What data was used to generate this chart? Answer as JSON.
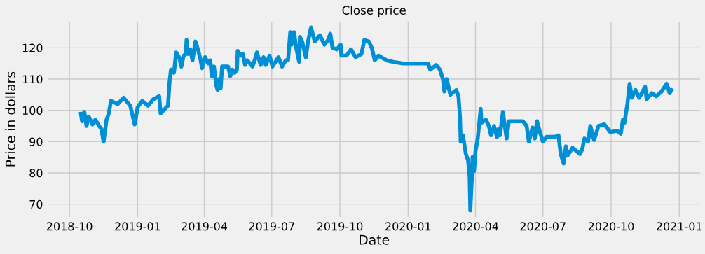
{
  "chart_data": {
    "type": "line",
    "title": "Close price",
    "xlabel": "Date",
    "ylabel": "Price in dollars",
    "x": [
      "2018-10-16",
      "2018-10-18",
      "2018-10-21",
      "2018-10-24",
      "2018-10-27",
      "2018-11-01",
      "2018-11-05",
      "2018-11-10",
      "2018-11-13",
      "2018-11-16",
      "2018-11-20",
      "2018-11-23",
      "2018-11-26",
      "2018-12-05",
      "2018-12-13",
      "2018-12-22",
      "2018-12-28",
      "2019-01-01",
      "2019-01-07",
      "2019-01-15",
      "2019-01-22",
      "2019-01-30",
      "2019-02-01",
      "2019-02-11",
      "2019-02-13",
      "2019-02-15",
      "2019-02-19",
      "2019-02-22",
      "2019-02-26",
      "2019-03-01",
      "2019-03-04",
      "2019-03-07",
      "2019-03-08",
      "2019-03-10",
      "2019-03-13",
      "2019-03-16",
      "2019-03-20",
      "2019-03-24",
      "2019-03-27",
      "2019-03-29",
      "2019-04-02",
      "2019-04-06",
      "2019-04-09",
      "2019-04-11",
      "2019-04-14",
      "2019-04-17",
      "2019-04-19",
      "2019-04-21",
      "2019-04-23",
      "2019-04-25",
      "2019-05-03",
      "2019-05-06",
      "2019-05-09",
      "2019-05-12",
      "2019-05-15",
      "2019-05-16",
      "2019-05-20",
      "2019-05-23",
      "2019-05-26",
      "2019-05-29",
      "2019-06-05",
      "2019-06-08",
      "2019-06-11",
      "2019-06-16",
      "2019-06-20",
      "2019-06-23",
      "2019-06-28",
      "2019-07-02",
      "2019-07-10",
      "2019-07-15",
      "2019-07-20",
      "2019-07-23",
      "2019-07-26",
      "2019-07-28",
      "2019-07-31",
      "2019-08-03",
      "2019-08-07",
      "2019-08-08",
      "2019-08-11",
      "2019-08-16",
      "2019-08-19",
      "2019-08-23",
      "2019-08-28",
      "2019-09-04",
      "2019-09-10",
      "2019-09-15",
      "2019-09-18",
      "2019-09-21",
      "2019-09-27",
      "2019-10-02",
      "2019-10-03",
      "2019-10-10",
      "2019-10-16",
      "2019-10-22",
      "2019-10-30",
      "2019-11-03",
      "2019-11-09",
      "2019-11-13",
      "2019-11-17",
      "2019-11-22",
      "2019-12-03",
      "2019-12-12",
      "2019-12-25",
      "2020-01-13",
      "2020-01-28",
      "2020-01-31",
      "2020-02-08",
      "2020-02-13",
      "2020-02-17",
      "2020-02-19",
      "2020-02-22",
      "2020-02-27",
      "2020-03-06",
      "2020-03-09",
      "2020-03-11",
      "2020-03-12",
      "2020-03-15",
      "2020-03-19",
      "2020-03-22",
      "2020-03-24",
      "2020-03-25",
      "2020-03-27",
      "2020-03-28",
      "2020-03-30",
      "2020-04-01",
      "2020-04-04",
      "2020-04-08",
      "2020-04-09",
      "2020-04-15",
      "2020-04-19",
      "2020-04-22",
      "2020-04-26",
      "2020-04-30",
      "2020-05-02",
      "2020-05-04",
      "2020-05-08",
      "2020-05-10",
      "2020-05-13",
      "2020-05-16",
      "2020-05-29",
      "2020-06-04",
      "2020-06-09",
      "2020-06-12",
      "2020-06-17",
      "2020-06-20",
      "2020-06-23",
      "2020-06-27",
      "2020-07-01",
      "2020-07-06",
      "2020-07-17",
      "2020-07-22",
      "2020-07-25",
      "2020-07-29",
      "2020-08-01",
      "2020-08-03",
      "2020-08-10",
      "2020-08-15",
      "2020-08-20",
      "2020-08-23",
      "2020-08-26",
      "2020-08-31",
      "2020-09-03",
      "2020-09-08",
      "2020-09-14",
      "2020-09-22",
      "2020-09-30",
      "2020-10-09",
      "2020-10-14",
      "2020-10-17",
      "2020-10-19",
      "2020-10-21",
      "2020-10-23",
      "2020-10-26",
      "2020-10-29",
      "2020-11-03",
      "2020-11-08",
      "2020-11-16",
      "2020-11-18",
      "2020-11-25",
      "2020-12-01",
      "2020-12-08",
      "2020-12-15",
      "2020-12-19",
      "2020-12-23"
    ],
    "series": [
      {
        "color": "#008fd5",
        "values": [
          99.5,
          96.5,
          99.5,
          95,
          98,
          95.5,
          97,
          95,
          94,
          90,
          97,
          99,
          103,
          102,
          104,
          101.5,
          95.5,
          101,
          103,
          101.5,
          103.5,
          104.5,
          99,
          101.5,
          109,
          113,
          112,
          118.5,
          117,
          114,
          117.5,
          118,
          122.5,
          118,
          119.5,
          116,
          122,
          119,
          116,
          113.5,
          117,
          115,
          116,
          111,
          114,
          108,
          106.5,
          110,
          107,
          114,
          114,
          111,
          113,
          112,
          113,
          119,
          117.5,
          118,
          114.5,
          116,
          114,
          116,
          118.5,
          114.5,
          117,
          114.5,
          117.5,
          114,
          117,
          114,
          116,
          116,
          125,
          121,
          125,
          120,
          115.5,
          123.5,
          122,
          117,
          122,
          126.5,
          122,
          124,
          121,
          122.5,
          124.5,
          120,
          119.5,
          121,
          117.5,
          117.5,
          119.5,
          117,
          118,
          122.5,
          122,
          120,
          116,
          117.5,
          116,
          115.5,
          115,
          115,
          115,
          113,
          114.5,
          113,
          110,
          106,
          110,
          105,
          106.5,
          104.5,
          98,
          90,
          92,
          86,
          84,
          79,
          68,
          78,
          85,
          80.5,
          87,
          91,
          100.5,
          96,
          97,
          95,
          92,
          95,
          91.5,
          94,
          92,
          99.5,
          96,
          91,
          96.5,
          96.5,
          96.5,
          95,
          90,
          94.5,
          91,
          96.5,
          93,
          90,
          91.5,
          91.5,
          92,
          86,
          83,
          88.5,
          85.5,
          88,
          87,
          86,
          87.5,
          91,
          90,
          95,
          90.5,
          95,
          95.5,
          93,
          93.5,
          92.5,
          97,
          96,
          99,
          102,
          108.5,
          104,
          106.5,
          104,
          107.5,
          103.5,
          105.5,
          104.5,
          106,
          108.5,
          105.5,
          107
        ]
      }
    ],
    "xlim": [
      "2018-08-31",
      "2021-01-31"
    ],
    "xticks": [
      {
        "value": "2018-10-01",
        "label": "2018-10"
      },
      {
        "value": "2019-01-01",
        "label": "2019-01"
      },
      {
        "value": "2019-04-01",
        "label": "2019-04"
      },
      {
        "value": "2019-07-01",
        "label": "2019-07"
      },
      {
        "value": "2019-10-01",
        "label": "2019-10"
      },
      {
        "value": "2020-01-01",
        "label": "2020-01"
      },
      {
        "value": "2020-04-01",
        "label": "2020-04"
      },
      {
        "value": "2020-07-01",
        "label": "2020-07"
      },
      {
        "value": "2020-10-01",
        "label": "2020-10"
      },
      {
        "value": "2021-01-01",
        "label": "2021-01"
      }
    ],
    "ylim": [
      65.4,
      128.8
    ],
    "yticks": [
      70,
      80,
      90,
      100,
      110,
      120
    ],
    "grid": true,
    "marker": "none",
    "line_style": "solid"
  }
}
